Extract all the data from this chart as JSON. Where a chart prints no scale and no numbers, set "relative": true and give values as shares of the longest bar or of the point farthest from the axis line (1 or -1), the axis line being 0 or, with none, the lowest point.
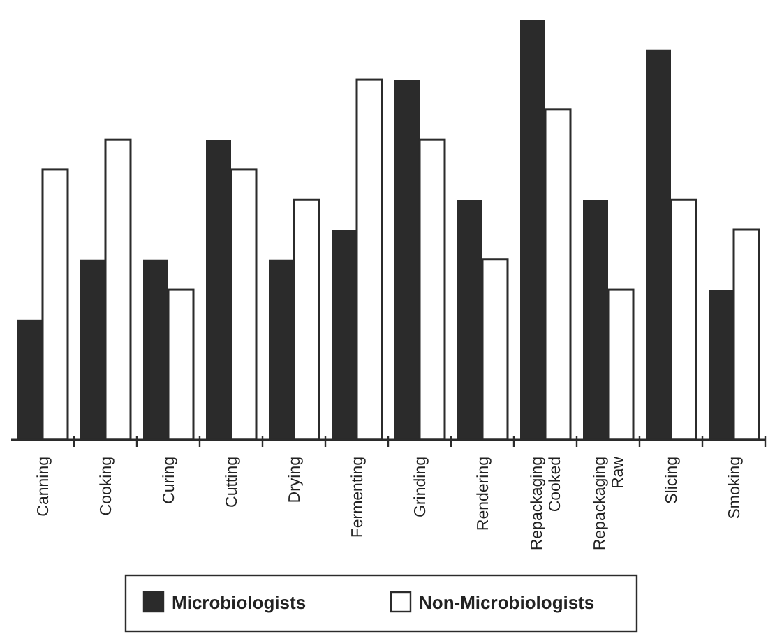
{
  "chart_data": {
    "type": "bar",
    "relative": true,
    "legend": "bottom",
    "categories": [
      "Canning",
      "Cooking",
      "Curing",
      "Cutting",
      "Drying",
      "Fermenting",
      "Grinding",
      "Rendering",
      "Repackaging Cooked",
      "Repackaging Raw",
      "Slicing",
      "Smoking"
    ],
    "series": [
      {
        "name": "Microbiologists",
        "color": "#2b2b2b",
        "values": [
          0.286,
          0.429,
          0.429,
          0.714,
          0.429,
          0.5,
          0.857,
          0.571,
          1,
          0.571,
          0.929,
          0.357
        ]
      },
      {
        "name": "Non-Microbiologists",
        "color": "#ffffff",
        "values": [
          0.643,
          0.714,
          0.357,
          0.643,
          0.571,
          0.857,
          0.714,
          0.429,
          0.786,
          0.357,
          0.571,
          0.5
        ]
      }
    ]
  }
}
